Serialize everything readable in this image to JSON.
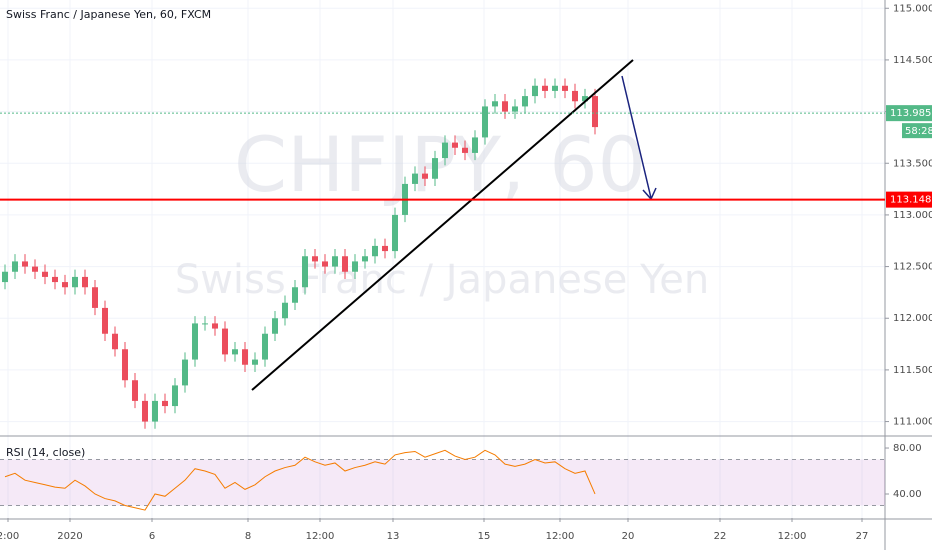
{
  "chart_data": {
    "type": "candlestick",
    "title": "Swiss Franc / Japanese Yen, 60, FXCM",
    "watermark": "CHFJPY, 60",
    "watermark_subtitle": "Swiss Franc / Japanese Yen",
    "up_color": "#53b987",
    "down_color": "#eb4d5c",
    "grid": true,
    "open": [
      112.35,
      112.45,
      112.55,
      112.5,
      112.45,
      112.4,
      112.35,
      112.3,
      112.4,
      112.3,
      112.1,
      111.85,
      111.7,
      111.4,
      111.2,
      111.0,
      111.2,
      111.15,
      111.35,
      111.6,
      111.95,
      111.95,
      111.9,
      111.65,
      111.7,
      111.55,
      111.6,
      111.85,
      112.0,
      112.15,
      112.3,
      112.6,
      112.55,
      112.5,
      112.6,
      112.45,
      112.55,
      112.6,
      112.7,
      112.65,
      113.0,
      113.3,
      113.4,
      113.35,
      113.55,
      113.7,
      113.65,
      113.6,
      113.75,
      114.05,
      114.1,
      114.0,
      114.05,
      114.15,
      114.25,
      114.2,
      114.25,
      114.2,
      114.1,
      114.15
    ],
    "high": [
      112.52,
      112.62,
      112.62,
      112.57,
      112.52,
      112.47,
      112.42,
      112.47,
      112.47,
      112.37,
      112.17,
      111.92,
      111.77,
      111.47,
      111.27,
      111.27,
      111.27,
      111.42,
      111.67,
      112.02,
      112.02,
      112.02,
      111.97,
      111.77,
      111.77,
      111.67,
      111.92,
      112.07,
      112.22,
      112.37,
      112.67,
      112.67,
      112.62,
      112.67,
      112.67,
      112.62,
      112.67,
      112.77,
      112.77,
      113.07,
      113.37,
      113.47,
      113.47,
      113.62,
      113.77,
      113.77,
      113.72,
      113.82,
      114.12,
      114.17,
      114.17,
      114.12,
      114.22,
      114.32,
      114.32,
      114.32,
      114.32,
      114.27,
      114.22,
      114.22
    ],
    "low": [
      112.28,
      112.38,
      112.43,
      112.38,
      112.33,
      112.28,
      112.23,
      112.23,
      112.23,
      112.03,
      111.78,
      111.63,
      111.33,
      111.13,
      110.93,
      110.93,
      111.08,
      111.08,
      111.28,
      111.53,
      111.88,
      111.83,
      111.58,
      111.58,
      111.48,
      111.48,
      111.53,
      111.78,
      111.93,
      112.08,
      112.23,
      112.48,
      112.43,
      112.43,
      112.38,
      112.38,
      112.48,
      112.53,
      112.58,
      112.58,
      112.93,
      113.23,
      113.28,
      113.28,
      113.48,
      113.58,
      113.53,
      113.53,
      113.68,
      113.98,
      113.93,
      113.93,
      113.98,
      114.08,
      114.13,
      114.13,
      114.13,
      114.03,
      114.03,
      113.78
    ],
    "close": [
      112.45,
      112.55,
      112.5,
      112.45,
      112.4,
      112.35,
      112.3,
      112.4,
      112.3,
      112.1,
      111.85,
      111.7,
      111.4,
      111.2,
      111.0,
      111.2,
      111.15,
      111.35,
      111.6,
      111.95,
      111.95,
      111.9,
      111.65,
      111.7,
      111.55,
      111.6,
      111.85,
      112.0,
      112.15,
      112.3,
      112.6,
      112.55,
      112.5,
      112.6,
      112.45,
      112.55,
      112.6,
      112.7,
      112.65,
      113.0,
      113.3,
      113.4,
      113.35,
      113.55,
      113.7,
      113.65,
      113.6,
      113.75,
      114.05,
      114.1,
      114.0,
      114.05,
      114.15,
      114.25,
      114.2,
      114.25,
      114.2,
      114.1,
      114.15,
      113.85
    ],
    "xlim": [
      -0.5,
      88
    ],
    "xticks": [
      {
        "value": 0.3,
        "label": "2:00"
      },
      {
        "value": 6.5,
        "label": "2020"
      },
      {
        "value": 14.7,
        "label": "6"
      },
      {
        "value": 24.3,
        "label": "8"
      },
      {
        "value": 31.5,
        "label": "12:00"
      },
      {
        "value": 38.8,
        "label": "13"
      },
      {
        "value": 47.9,
        "label": "15"
      },
      {
        "value": 55.5,
        "label": "12:00"
      },
      {
        "value": 62.3,
        "label": "20"
      },
      {
        "value": 71.5,
        "label": "22"
      },
      {
        "value": 78.7,
        "label": "12:00"
      },
      {
        "value": 85.7,
        "label": "27"
      }
    ],
    "ylim": [
      110.87,
      115.08
    ],
    "yticks": [
      {
        "value": 111,
        "label": "111.000"
      },
      {
        "value": 111.5,
        "label": "111.500"
      },
      {
        "value": 112,
        "label": "112.000"
      },
      {
        "value": 112.5,
        "label": "112.500"
      },
      {
        "value": 113,
        "label": "113.000"
      },
      {
        "value": 113.5,
        "label": "113.500"
      },
      {
        "value": 114,
        "label": "114.000"
      },
      {
        "value": 114.5,
        "label": "114.500"
      },
      {
        "value": 115,
        "label": "115.000"
      }
    ],
    "levels": [
      {
        "value": 113.985,
        "color": "#53b987"
      },
      {
        "value": 113.148,
        "color": "#ff0000"
      }
    ],
    "countdown": "58:28",
    "rsi": {
      "name": "RSI (14, close)",
      "color": "#f57c00",
      "values": [
        55,
        58,
        52,
        50,
        48,
        46,
        45,
        52,
        47,
        40,
        36,
        34,
        30,
        28,
        26,
        40,
        38,
        45,
        52,
        62,
        60,
        57,
        45,
        50,
        44,
        48,
        55,
        60,
        63,
        65,
        72,
        68,
        65,
        67,
        60,
        63,
        65,
        68,
        66,
        74,
        76,
        77,
        72,
        75,
        78,
        73,
        70,
        72,
        78,
        74,
        66,
        64,
        66,
        70,
        67,
        68,
        62,
        58,
        60,
        40
      ],
      "ylim": [
        19.1,
        89.6
      ],
      "yticks": [
        {
          "value": 40,
          "label": "40.00"
        },
        {
          "value": 80,
          "label": "80.00"
        }
      ],
      "bands": [
        30,
        70
      ],
      "band_color": "#9c27b0"
    }
  }
}
